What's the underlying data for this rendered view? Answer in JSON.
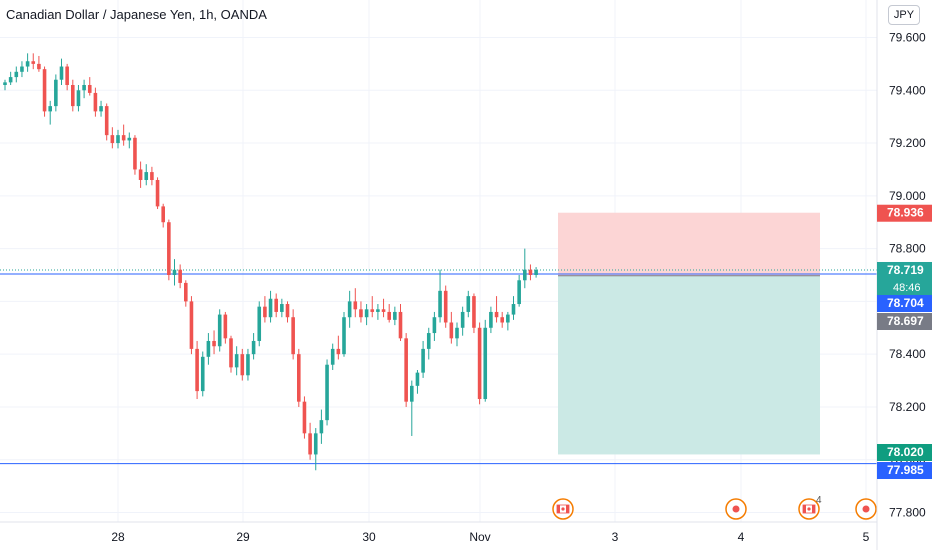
{
  "header": {
    "title": "Canadian Dollar / Japanese Yen, 1h, OANDA",
    "currency": "JPY"
  },
  "colors": {
    "up": "#26a69a",
    "down": "#ef5350",
    "grid": "#f0f3fa",
    "axis_text": "#131722",
    "price_line": "#2962ff",
    "stop_zone": "#fcd5d5",
    "target_zone": "#cbe9e5",
    "event_orange": "#f57c00"
  },
  "chart_data": {
    "type": "candlestick",
    "title": "Canadian Dollar / Japanese Yen, 1h, OANDA",
    "ylim": [
      77.76,
      79.66
    ],
    "yticks": [
      "79.600",
      "79.400",
      "79.200",
      "79.000",
      "78.800",
      "78.600",
      "78.400",
      "78.200",
      "78.000",
      "77.800"
    ],
    "x_labels": [
      "28",
      "29",
      "30",
      "Nov",
      "3",
      "4",
      "5"
    ],
    "grid": true,
    "candles": [
      [
        79.42,
        79.44,
        79.4,
        79.43
      ],
      [
        79.43,
        79.47,
        79.42,
        79.45
      ],
      [
        79.45,
        79.49,
        79.43,
        79.47
      ],
      [
        79.47,
        79.51,
        79.45,
        79.49
      ],
      [
        79.49,
        79.54,
        79.47,
        79.51
      ],
      [
        79.51,
        79.54,
        79.48,
        79.5
      ],
      [
        79.5,
        79.53,
        79.47,
        79.48
      ],
      [
        79.48,
        79.49,
        79.3,
        79.32
      ],
      [
        79.32,
        79.36,
        79.27,
        79.34
      ],
      [
        79.34,
        79.46,
        79.32,
        79.44
      ],
      [
        79.44,
        79.52,
        79.42,
        79.49
      ],
      [
        79.49,
        79.5,
        79.4,
        79.42
      ],
      [
        79.42,
        79.44,
        79.32,
        79.34
      ],
      [
        79.34,
        79.42,
        79.32,
        79.4
      ],
      [
        79.4,
        79.44,
        79.37,
        79.42
      ],
      [
        79.42,
        79.45,
        79.38,
        79.39
      ],
      [
        79.39,
        79.41,
        79.3,
        79.32
      ],
      [
        79.32,
        79.36,
        79.3,
        79.34
      ],
      [
        79.34,
        79.35,
        79.21,
        79.23
      ],
      [
        79.23,
        79.26,
        79.18,
        79.2
      ],
      [
        79.2,
        79.25,
        79.18,
        79.23
      ],
      [
        79.23,
        79.27,
        79.19,
        79.21
      ],
      [
        79.21,
        79.24,
        79.18,
        79.22
      ],
      [
        79.22,
        79.23,
        79.08,
        79.1
      ],
      [
        79.1,
        79.13,
        79.03,
        79.06
      ],
      [
        79.06,
        79.12,
        79.04,
        79.09
      ],
      [
        79.09,
        79.11,
        79.04,
        79.06
      ],
      [
        79.06,
        79.07,
        78.95,
        78.96
      ],
      [
        78.96,
        78.97,
        78.88,
        78.9
      ],
      [
        78.9,
        78.91,
        78.68,
        78.7
      ],
      [
        78.7,
        78.76,
        78.66,
        78.72
      ],
      [
        78.72,
        78.74,
        78.65,
        78.67
      ],
      [
        78.67,
        78.68,
        78.58,
        78.6
      ],
      [
        78.6,
        78.62,
        78.4,
        78.42
      ],
      [
        78.42,
        78.45,
        78.23,
        78.26
      ],
      [
        78.26,
        78.41,
        78.24,
        78.39
      ],
      [
        78.39,
        78.48,
        78.36,
        78.45
      ],
      [
        78.45,
        78.49,
        78.4,
        78.43
      ],
      [
        78.43,
        78.57,
        78.41,
        78.55
      ],
      [
        78.55,
        78.56,
        78.44,
        78.46
      ],
      [
        78.46,
        78.47,
        78.33,
        78.35
      ],
      [
        78.35,
        78.43,
        78.32,
        78.4
      ],
      [
        78.4,
        78.42,
        78.3,
        78.32
      ],
      [
        78.32,
        78.42,
        78.3,
        78.4
      ],
      [
        78.4,
        78.48,
        78.38,
        78.45
      ],
      [
        78.45,
        78.6,
        78.43,
        78.58
      ],
      [
        78.58,
        78.62,
        78.52,
        78.54
      ],
      [
        78.54,
        78.64,
        78.52,
        78.61
      ],
      [
        78.61,
        78.63,
        78.54,
        78.56
      ],
      [
        78.56,
        78.61,
        78.54,
        78.59
      ],
      [
        78.59,
        78.6,
        78.52,
        78.54
      ],
      [
        78.54,
        78.57,
        78.38,
        78.4
      ],
      [
        78.4,
        78.42,
        78.2,
        78.22
      ],
      [
        78.22,
        78.24,
        78.08,
        78.1
      ],
      [
        78.1,
        78.14,
        78.0,
        78.02
      ],
      [
        78.02,
        78.12,
        77.96,
        78.1
      ],
      [
        78.1,
        78.19,
        78.06,
        78.15
      ],
      [
        78.15,
        78.38,
        78.13,
        78.36
      ],
      [
        78.36,
        78.44,
        78.34,
        78.42
      ],
      [
        78.42,
        78.47,
        78.38,
        78.4
      ],
      [
        78.4,
        78.56,
        78.39,
        78.54
      ],
      [
        78.54,
        78.64,
        78.5,
        78.6
      ],
      [
        78.6,
        78.65,
        78.54,
        78.57
      ],
      [
        78.57,
        78.6,
        78.52,
        78.54
      ],
      [
        78.54,
        78.59,
        78.51,
        78.57
      ],
      [
        78.57,
        78.62,
        78.54,
        78.56
      ],
      [
        78.56,
        78.59,
        78.53,
        78.57
      ],
      [
        78.57,
        78.61,
        78.54,
        78.56
      ],
      [
        78.56,
        78.59,
        78.52,
        78.53
      ],
      [
        78.53,
        78.58,
        78.51,
        78.56
      ],
      [
        78.56,
        78.59,
        78.45,
        78.46
      ],
      [
        78.46,
        78.48,
        78.2,
        78.22
      ],
      [
        78.22,
        78.3,
        78.09,
        78.28
      ],
      [
        78.28,
        78.34,
        78.25,
        78.33
      ],
      [
        78.33,
        78.45,
        78.31,
        78.42
      ],
      [
        78.42,
        78.5,
        78.38,
        78.48
      ],
      [
        78.48,
        78.56,
        78.45,
        78.54
      ],
      [
        78.54,
        78.72,
        78.52,
        78.64
      ],
      [
        78.64,
        78.66,
        78.5,
        78.52
      ],
      [
        78.52,
        78.56,
        78.44,
        78.46
      ],
      [
        78.46,
        78.52,
        78.43,
        78.5
      ],
      [
        78.5,
        78.58,
        78.47,
        78.56
      ],
      [
        78.56,
        78.64,
        78.54,
        78.62
      ],
      [
        78.62,
        78.63,
        78.48,
        78.5
      ],
      [
        78.5,
        78.52,
        78.21,
        78.23
      ],
      [
        78.23,
        78.53,
        78.22,
        78.5
      ],
      [
        78.5,
        78.58,
        78.48,
        78.56
      ],
      [
        78.56,
        78.62,
        78.52,
        78.54
      ],
      [
        78.54,
        78.56,
        78.5,
        78.52
      ],
      [
        78.52,
        78.56,
        78.49,
        78.55
      ],
      [
        78.55,
        78.62,
        78.53,
        78.59
      ],
      [
        78.59,
        78.7,
        78.58,
        78.68
      ],
      [
        78.68,
        78.8,
        78.65,
        78.72
      ],
      [
        78.72,
        78.74,
        78.68,
        78.7
      ],
      [
        78.7,
        78.73,
        78.69,
        78.719
      ]
    ],
    "price_labels": [
      {
        "value": 78.936,
        "text": "78.936",
        "role": "stop"
      },
      {
        "value": 78.719,
        "text": "78.719",
        "role": "last",
        "countdown": "48:46"
      },
      {
        "value": 78.704,
        "text": "78.704",
        "role": "line"
      },
      {
        "value": 78.697,
        "text": "78.697",
        "role": "entry"
      },
      {
        "value": 78.02,
        "text": "78.020",
        "role": "target"
      },
      {
        "value": 77.985,
        "text": "77.985",
        "role": "line"
      }
    ],
    "position": {
      "entry": 78.697,
      "stop": 78.936,
      "target": 78.02
    },
    "horizontal_lines": [
      78.704,
      77.985
    ],
    "events": [
      {
        "type": "flag-ca",
        "count": ""
      },
      {
        "type": "dot",
        "count": ""
      },
      {
        "type": "flag-ca",
        "count": "4"
      },
      {
        "type": "dot",
        "count": ""
      }
    ]
  }
}
